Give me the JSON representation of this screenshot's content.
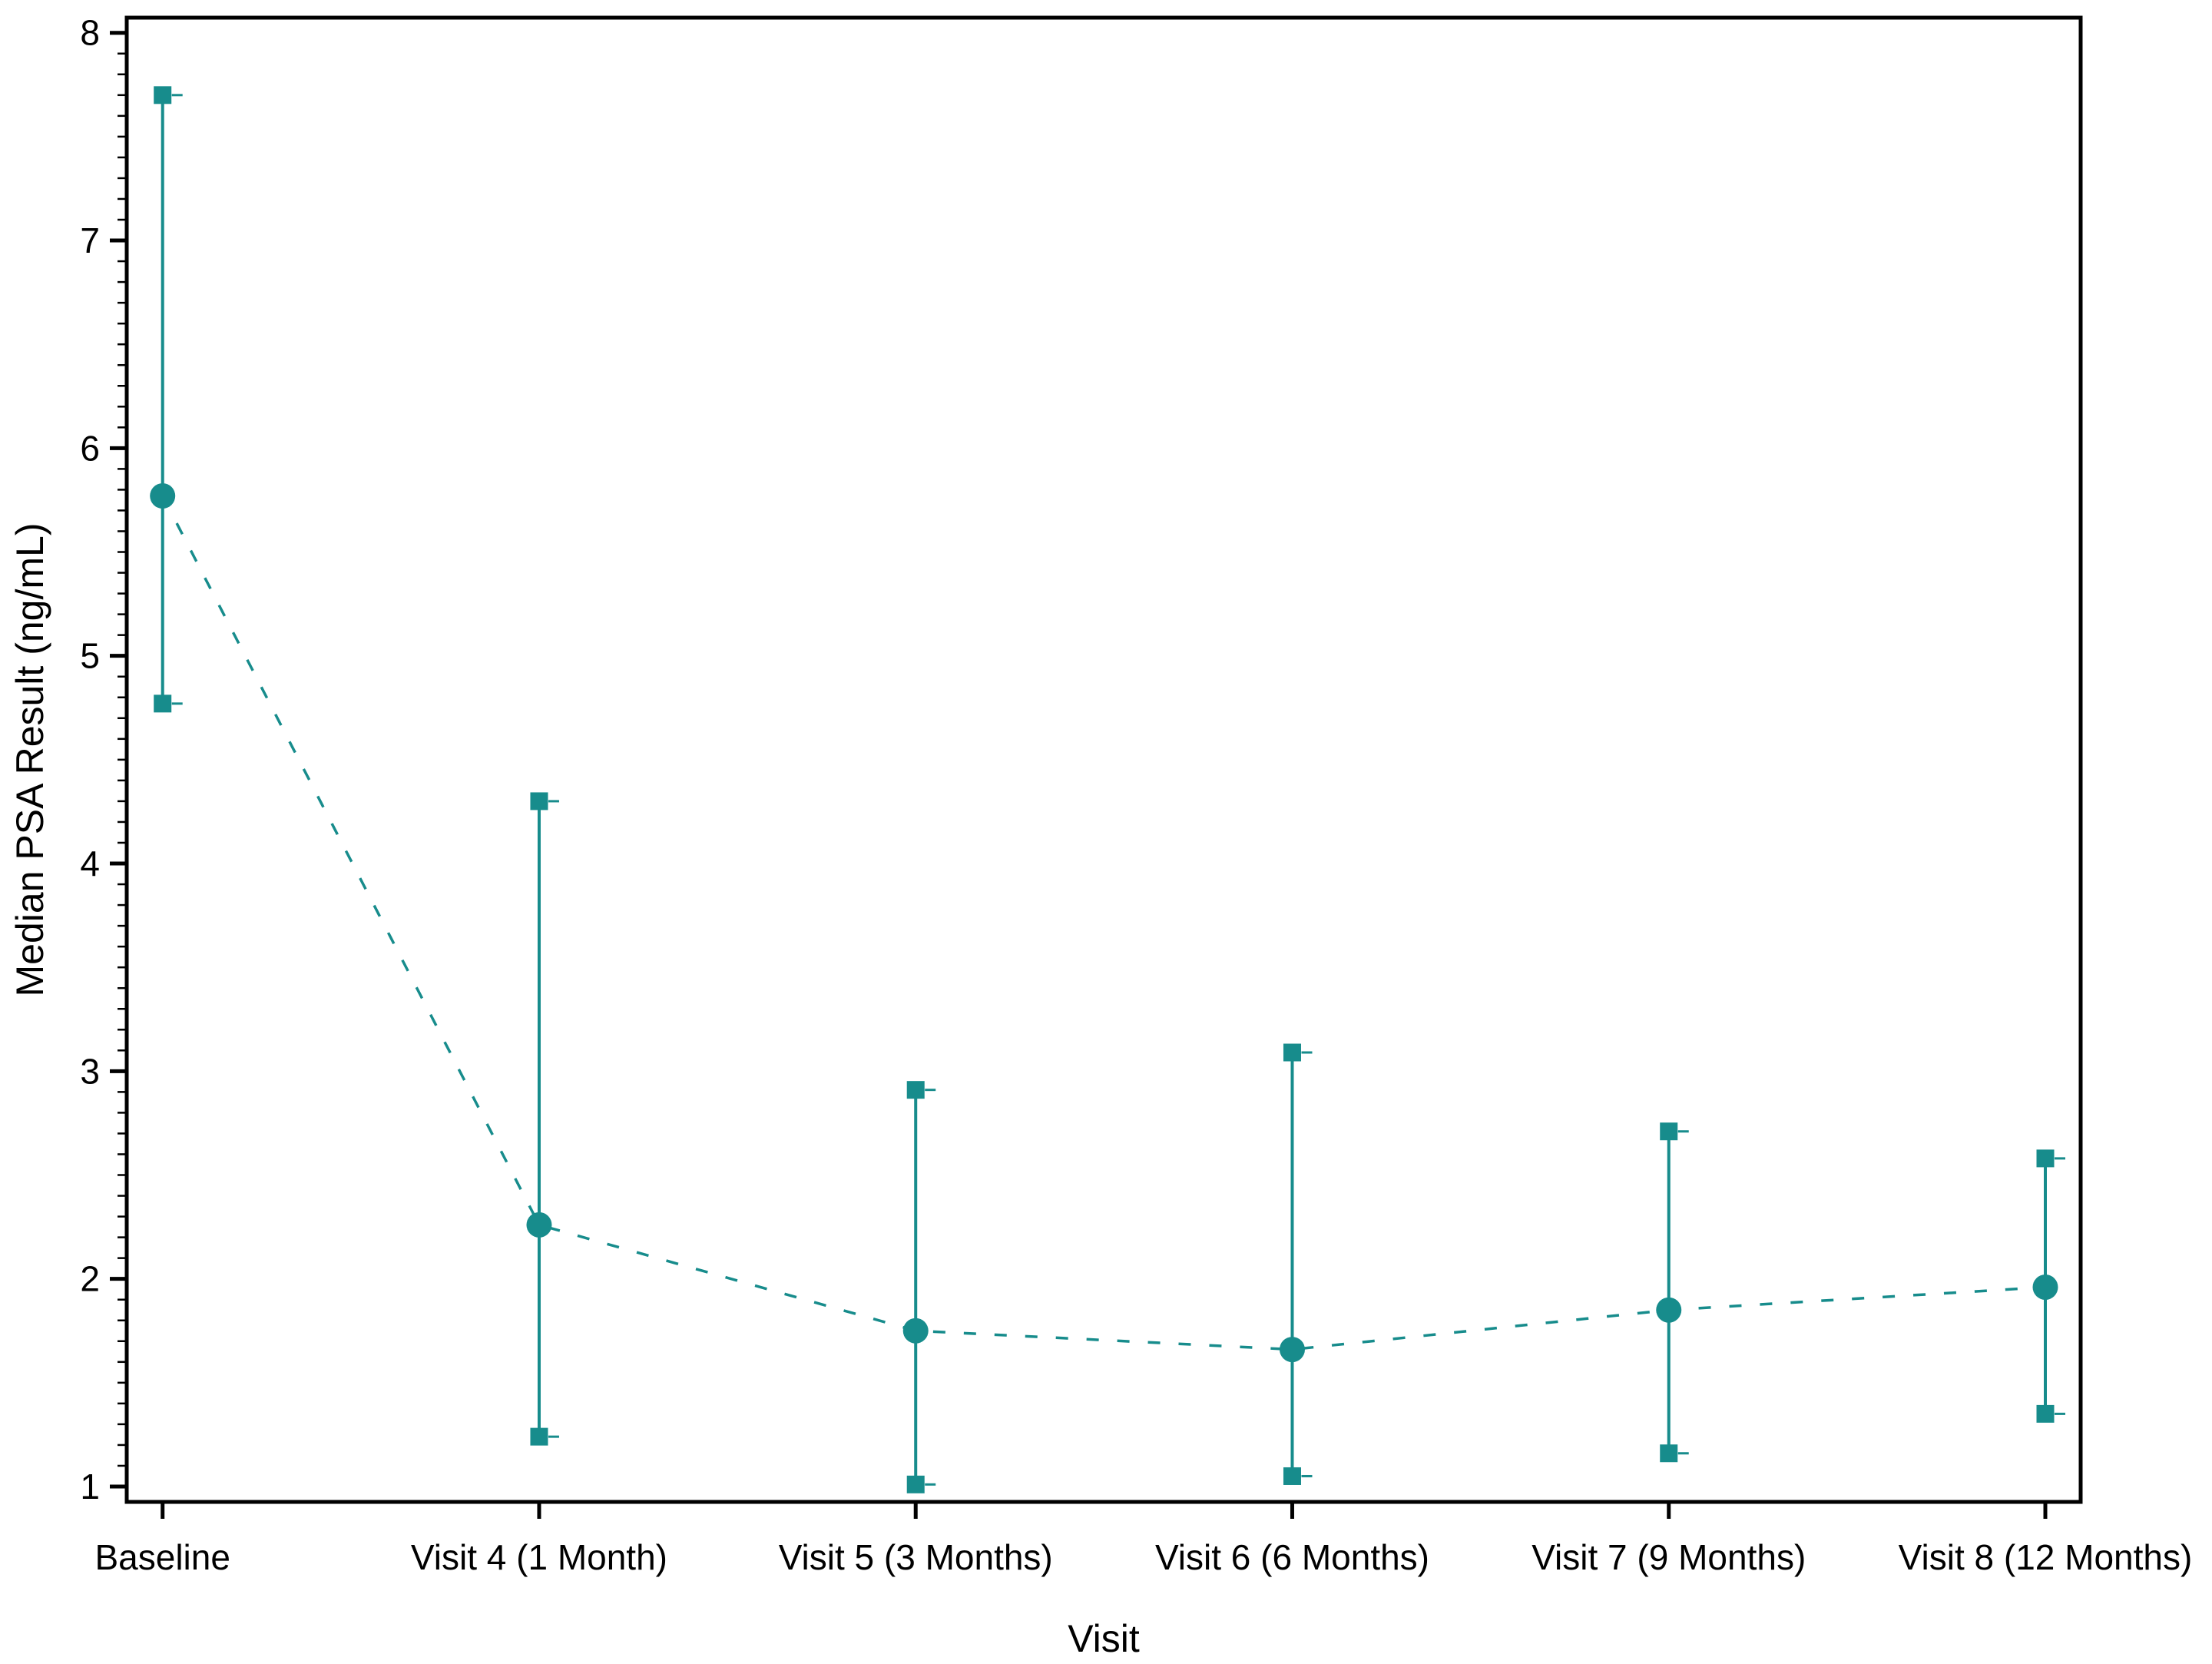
{
  "figure": {
    "background": "#ffffff",
    "axis_color": "#000000",
    "accent_color": "#178C8C"
  },
  "chart_data": {
    "type": "line",
    "title": "",
    "xlabel": "Visit",
    "ylabel": "Median PSA Result (ng/mL)",
    "categories": [
      "Baseline",
      "Visit 4 (1 Month)",
      "Visit 5 (3 Months)",
      "Visit 6 (6 Months)",
      "Visit 7 (9 Months)",
      "Visit 8 (12 Months)"
    ],
    "series": [
      {
        "name": "Median PSA Result",
        "values": [
          5.77,
          2.26,
          1.75,
          1.66,
          1.85,
          1.96
        ]
      }
    ],
    "error_bars": {
      "upper": [
        7.7,
        4.3,
        2.91,
        3.09,
        2.71,
        2.58
      ],
      "lower": [
        4.77,
        1.24,
        1.01,
        1.05,
        1.16,
        1.35
      ]
    },
    "ylim": [
      1,
      8
    ],
    "yticks": [
      1,
      2,
      3,
      4,
      5,
      6,
      7,
      8
    ],
    "minor_tick_step": 0.1,
    "grid": false,
    "legend": false,
    "line_style": "dashed",
    "median_marker": "circle",
    "whisker_marker": "square"
  }
}
